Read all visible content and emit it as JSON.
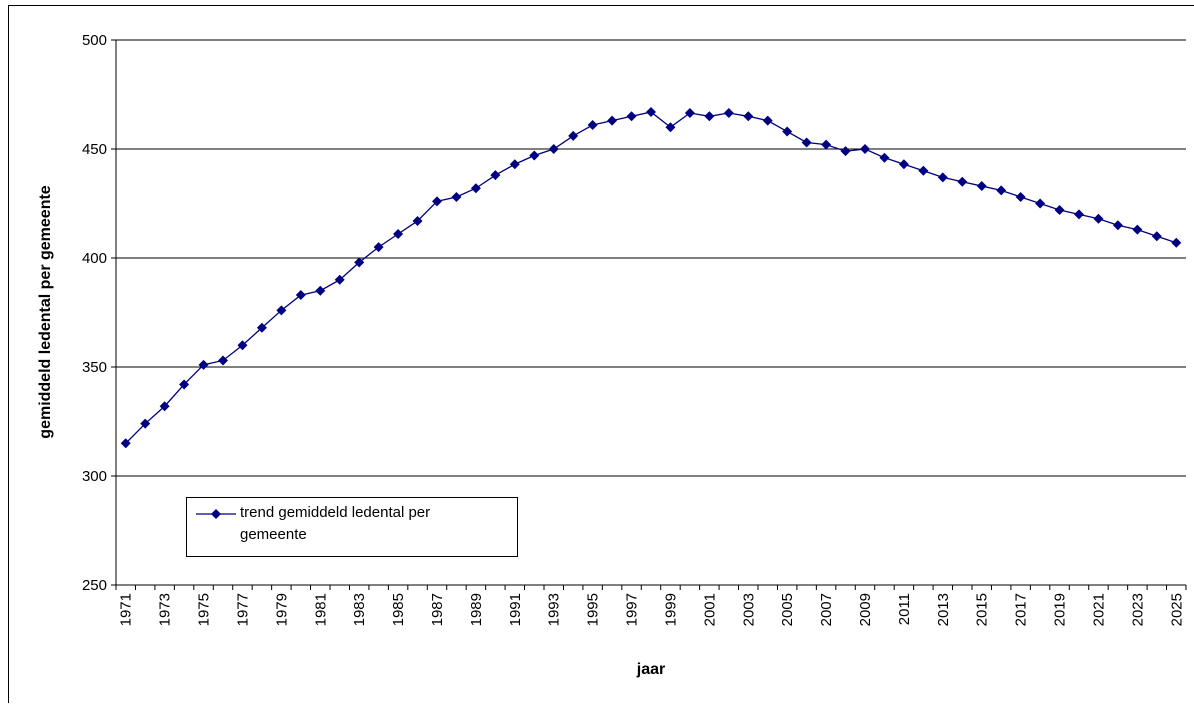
{
  "chart_data": {
    "type": "line",
    "x_label": "jaar",
    "y_label": "gemiddeld ledental per gemeente",
    "categories": [
      "1971",
      null,
      "1973",
      null,
      "1975",
      null,
      "1977",
      null,
      "1979",
      null,
      "1981",
      null,
      "1983",
      null,
      "1985",
      null,
      "1987",
      null,
      "1989",
      null,
      "1991",
      null,
      "1993",
      null,
      "1995",
      null,
      "1997",
      null,
      "1999",
      null,
      "2001",
      null,
      "2003",
      null,
      "2005",
      null,
      "2007",
      null,
      "2009",
      null,
      "2011",
      null,
      "2013",
      null,
      "2015",
      null,
      "2017",
      null,
      "2019",
      null,
      "2021",
      null,
      "2023",
      null,
      "2025"
    ],
    "series": [
      {
        "name": "trend gemiddeld ledental per gemeente",
        "color": "#000080",
        "values": [
          315,
          324,
          332,
          342,
          351,
          353,
          360,
          368,
          376,
          383,
          385,
          390,
          398,
          405,
          411,
          417,
          426,
          428,
          432,
          438,
          443,
          447,
          450,
          456,
          461,
          463,
          465,
          467,
          460,
          466.5,
          465,
          466.5,
          465,
          463,
          458,
          453,
          452,
          449,
          450,
          446,
          443,
          440,
          437,
          435,
          433,
          431,
          428,
          425,
          422,
          420,
          418,
          415,
          413,
          410,
          407
        ]
      }
    ],
    "ylim": [
      250,
      500
    ],
    "yticks": [
      250,
      300,
      350,
      400,
      450,
      500
    ],
    "grid": true
  }
}
